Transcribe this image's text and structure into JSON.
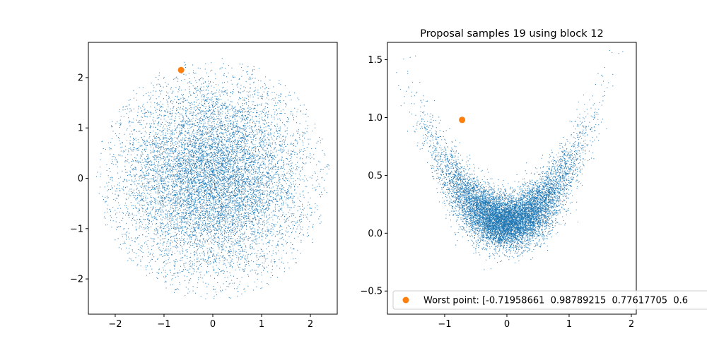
{
  "figure": {
    "colors": {
      "samples": "#1f77b4",
      "worst": "#ff7f0e",
      "axes": "#000000"
    }
  },
  "chart_data": [
    {
      "type": "scatter",
      "title": "",
      "xlabel": "",
      "ylabel": "",
      "xlim": [
        -2.55,
        2.55
      ],
      "ylim": [
        -2.7,
        2.7
      ],
      "xticks": [
        -2,
        -1,
        0,
        1,
        2
      ],
      "yticks": [
        -2,
        -1,
        0,
        1,
        2
      ],
      "xtick_labels": [
        "−2",
        "−1",
        "0",
        "1",
        "2"
      ],
      "ytick_labels": [
        "−2",
        "−1",
        "0",
        "1",
        "2"
      ],
      "grid": false,
      "samples": {
        "distribution": "standard normal point cloud centred at origin, radius about 2.4",
        "approx_count": 10000,
        "marker": "pixel",
        "color": "#1f77b4"
      },
      "worst_point": {
        "x": -0.65,
        "y": 2.15,
        "color": "#ff7f0e"
      }
    },
    {
      "type": "scatter",
      "title": "Proposal samples 19 using block 12",
      "xlabel": "",
      "ylabel": "",
      "xlim": [
        -1.92,
        2.08
      ],
      "ylim": [
        -0.7,
        1.65
      ],
      "xticks": [
        -1,
        0,
        1,
        2
      ],
      "yticks": [
        -0.5,
        0.0,
        0.5,
        1.0,
        1.5
      ],
      "xtick_labels": [
        "−1",
        "0",
        "1",
        "2"
      ],
      "ytick_labels": [
        "−0.5",
        "0.0",
        "0.5",
        "1.0",
        "1.5"
      ],
      "grid": false,
      "samples": {
        "distribution": "banana / V-shaped cloud, y ≈ 0.45·x² + 0.1 + noise",
        "approx_count": 10000,
        "marker": "pixel",
        "color": "#1f77b4"
      },
      "worst_point": {
        "x": -0.72,
        "y": 0.98,
        "color": "#ff7f0e"
      },
      "legend": {
        "placement": "lower-center",
        "entries": [
          {
            "label": "Worst point: [-0.71958661  0.98789215  0.77617705  0.6",
            "color": "#ff7f0e",
            "marker": "circle"
          }
        ]
      }
    }
  ]
}
